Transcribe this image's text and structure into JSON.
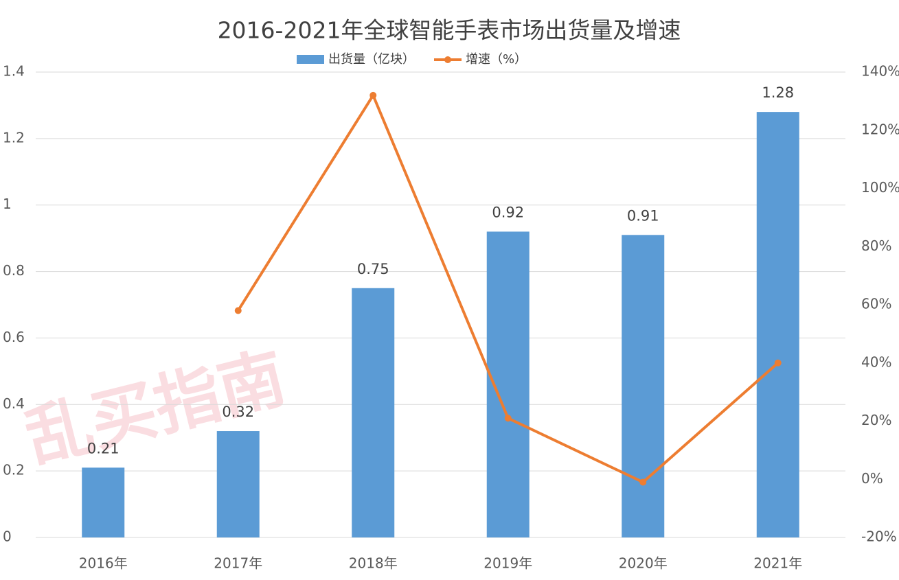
{
  "chart_data": {
    "type": "bar_line",
    "title": "2016-2021年全球智能手表市场出货量及增速",
    "watermark": "乱买指南",
    "categories": [
      "2016年",
      "2017年",
      "2018年",
      "2019年",
      "2020年",
      "2021年"
    ],
    "series": [
      {
        "name": "出货量（亿块）",
        "type": "bar",
        "color": "#5b9bd5",
        "values": [
          0.21,
          0.32,
          0.75,
          0.92,
          0.91,
          1.28
        ]
      },
      {
        "name": "增速（%）",
        "type": "line",
        "axis": "y2",
        "color": "#ed7d31",
        "values": [
          null,
          58,
          132,
          21,
          -1,
          40
        ]
      }
    ],
    "ylim": [
      0,
      1.4
    ],
    "yticks": [
      0,
      0.2,
      0.4,
      0.6,
      0.8,
      1,
      1.2,
      1.4
    ],
    "y2lim": [
      -20,
      140
    ],
    "y2ticks": [
      {
        "value": -20,
        "label": "-20%"
      },
      {
        "value": 0,
        "label": "0%"
      },
      {
        "value": 20,
        "label": "20%"
      },
      {
        "value": 40,
        "label": "40%"
      },
      {
        "value": 60,
        "label": "60%"
      },
      {
        "value": 80,
        "label": "80%"
      },
      {
        "value": 100,
        "label": "100%"
      },
      {
        "value": 120,
        "label": "120%"
      },
      {
        "value": 140,
        "label": "140%"
      }
    ],
    "grid": true
  }
}
